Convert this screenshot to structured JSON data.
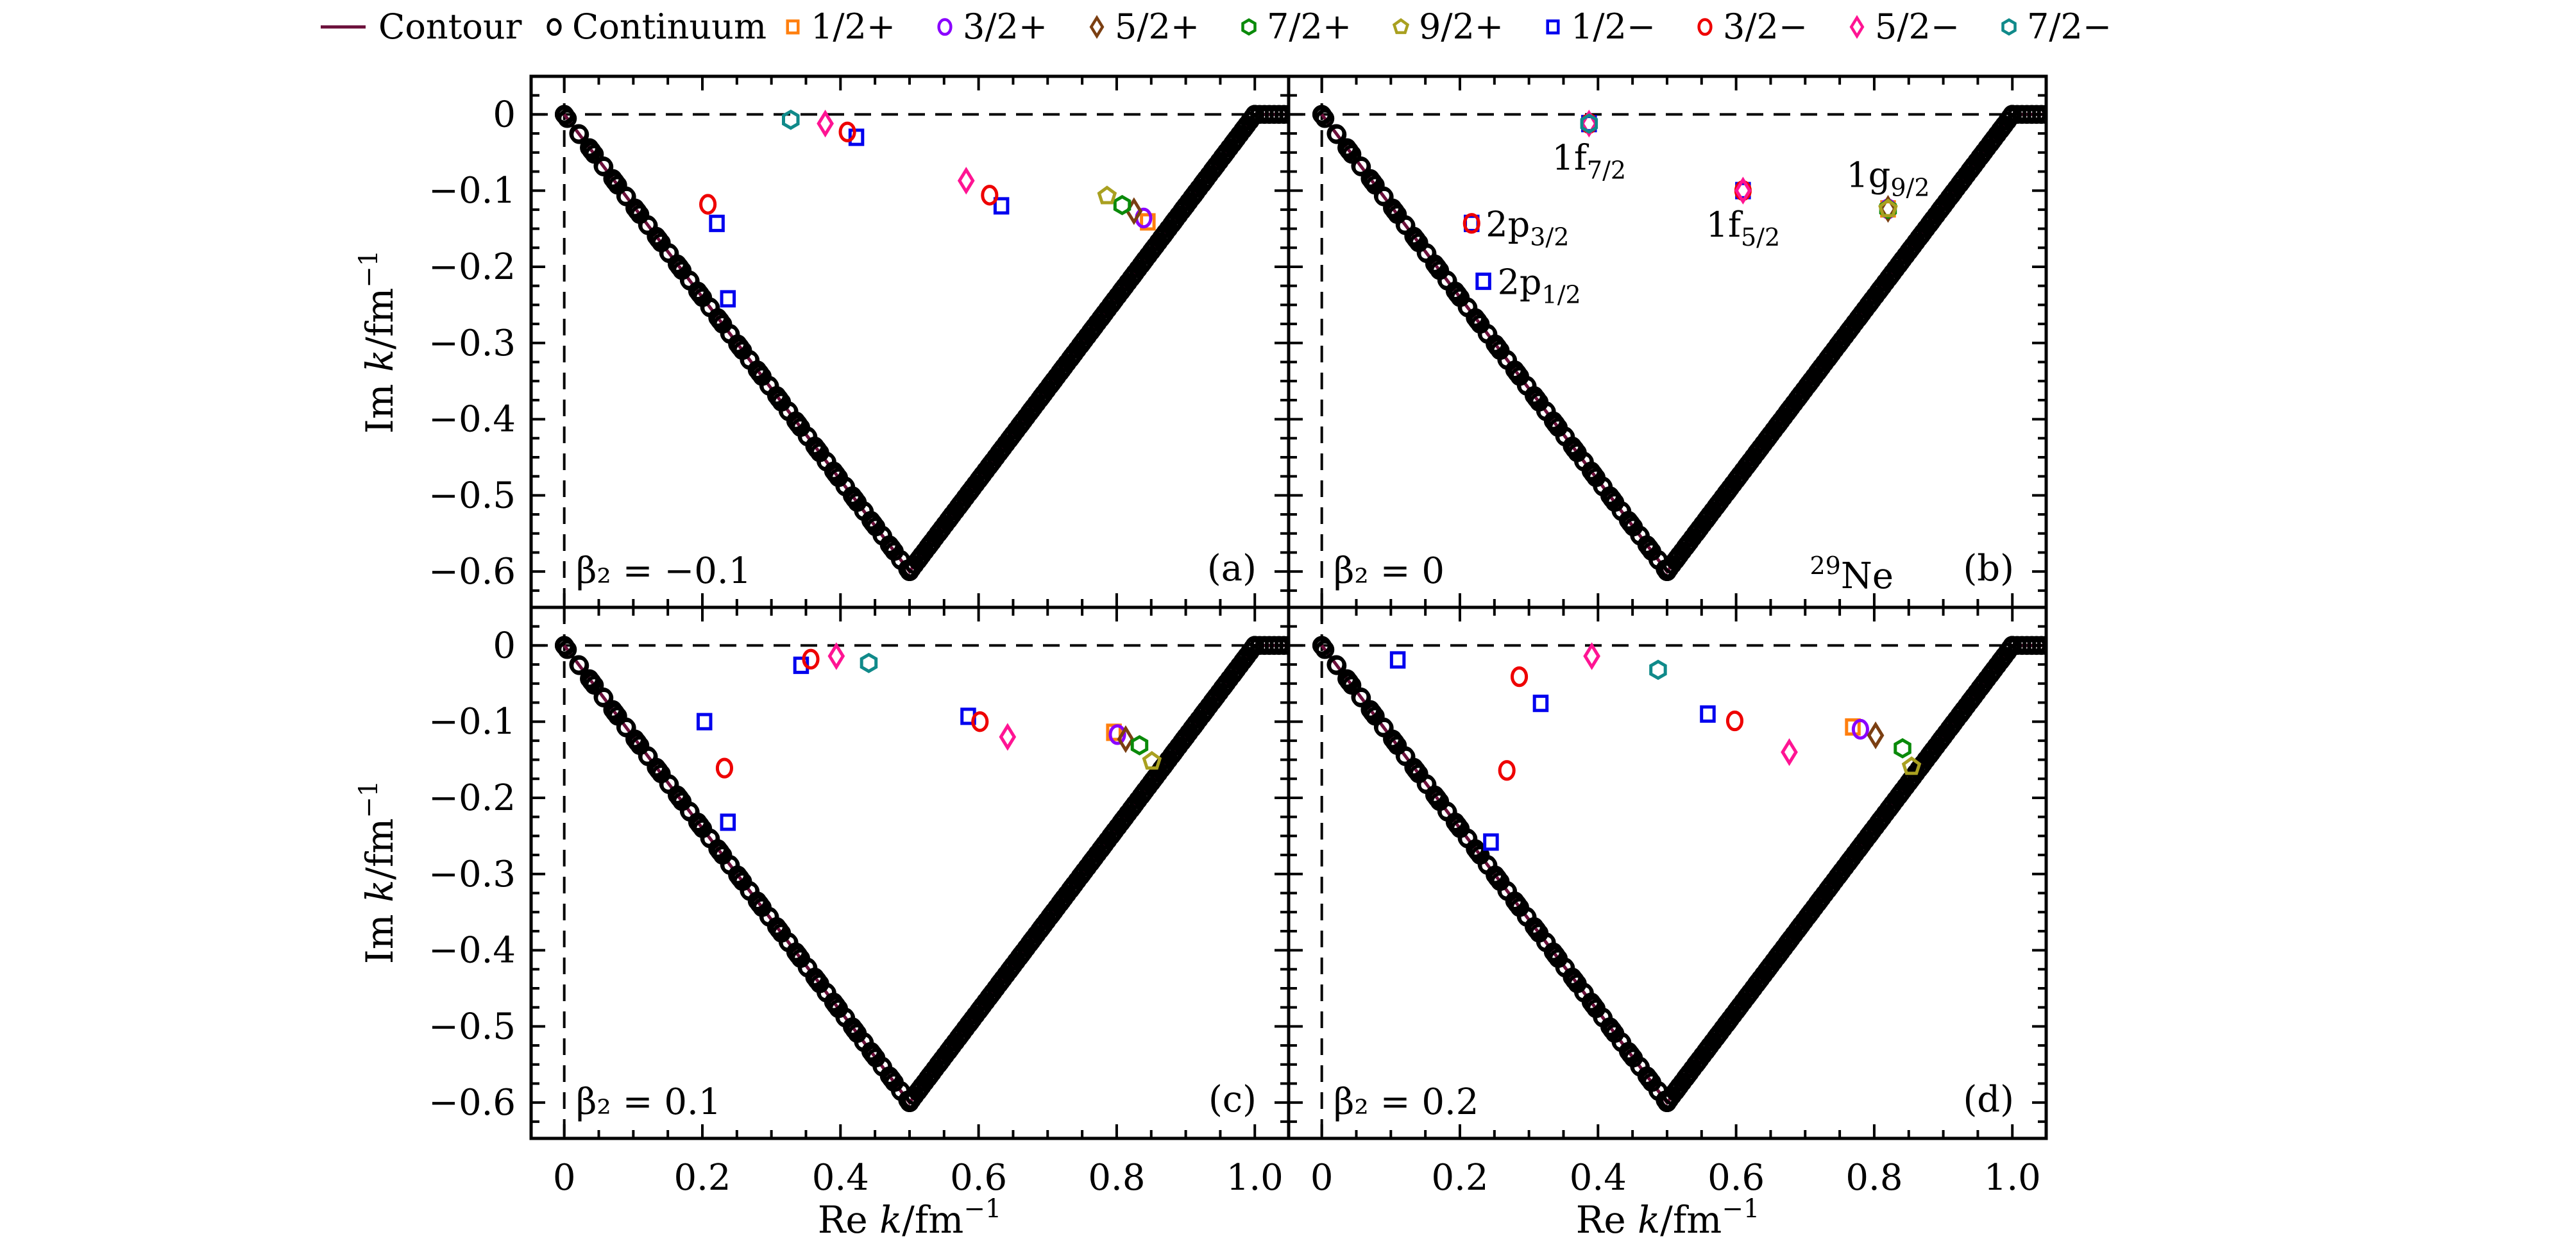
{
  "chart_data": {
    "type": "scatter",
    "layout": "2x2 panels, shared axes",
    "xlabel": "Re k/fm⁻¹",
    "ylabel": "Im k/fm⁻¹",
    "xlabel_parts": {
      "pre": "Re ",
      "var": "k",
      "post": "/fm",
      "sup": "−1"
    },
    "ylabel_parts": {
      "pre": "Im ",
      "var": "k",
      "post": "/fm",
      "sup": "−1"
    },
    "xlim": [
      -0.048,
      1.049
    ],
    "ylim": [
      -0.647,
      0.05
    ],
    "xticks": [
      0,
      0.2,
      0.4,
      0.6,
      0.8,
      1.0
    ],
    "xtick_labels": [
      "0",
      "0.2",
      "0.4",
      "0.6",
      "0.8",
      "1.0"
    ],
    "yticks": [
      0,
      -0.1,
      -0.2,
      -0.3,
      -0.4,
      -0.5,
      -0.6
    ],
    "ytick_labels": [
      "0",
      "−0.1",
      "−0.2",
      "−0.3",
      "−0.4",
      "−0.5",
      "−0.6"
    ],
    "grid": false,
    "reference_lines": {
      "x": 0,
      "y": 0,
      "style": "dashed"
    },
    "legend": {
      "placement": "top, outside, single row",
      "entries": [
        {
          "key": "contour",
          "label": "Contour",
          "marker": "line",
          "color": "#6b0f3a"
        },
        {
          "key": "continuum",
          "label": "Continuum",
          "marker": "circle",
          "color": "#000000"
        },
        {
          "key": "1/2+",
          "label": "1/2+",
          "marker": "square",
          "color": "#ff7f0e"
        },
        {
          "key": "3/2+",
          "label": "3/2+",
          "marker": "circle",
          "color": "#8a00ff"
        },
        {
          "key": "5/2+",
          "label": "5/2+",
          "marker": "diamond",
          "color": "#7b3f12"
        },
        {
          "key": "7/2+",
          "label": "7/2+",
          "marker": "hexagon",
          "color": "#0a8a0a"
        },
        {
          "key": "9/2+",
          "label": "9/2+",
          "marker": "pentagon",
          "color": "#a9a020"
        },
        {
          "key": "1/2-",
          "label": "1/2−",
          "marker": "square",
          "color": "#0000ee"
        },
        {
          "key": "3/2-",
          "label": "3/2−",
          "marker": "circle",
          "color": "#ee0000"
        },
        {
          "key": "5/2-",
          "label": "5/2−",
          "marker": "diamond",
          "color": "#ff1493"
        },
        {
          "key": "7/2-",
          "label": "7/2−",
          "marker": "hexagon",
          "color": "#108a8a"
        }
      ]
    },
    "contour": {
      "points": [
        [
          0,
          0
        ],
        [
          0.5,
          -0.6
        ],
        [
          1.0,
          0
        ],
        [
          1.049,
          0
        ]
      ]
    },
    "continuum": {
      "description": "open black circles densely distributed along the contour (several overlapping copies per partial wave)",
      "points_per_segment": 34,
      "flat_tail_points": 8
    },
    "panels": [
      {
        "id": "a",
        "tag": "(a)",
        "beta2_label": "β₂ = −0.1",
        "beta2": -0.1,
        "series": [
          {
            "key": "1/2+",
            "points": [
              [
                0.845,
                -0.141
              ]
            ]
          },
          {
            "key": "3/2+",
            "points": [
              [
                0.839,
                -0.136
              ]
            ]
          },
          {
            "key": "5/2+",
            "points": [
              [
                0.825,
                -0.127
              ]
            ]
          },
          {
            "key": "7/2+",
            "points": [
              [
                0.808,
                -0.119
              ]
            ]
          },
          {
            "key": "9/2+",
            "points": [
              [
                0.786,
                -0.107
              ]
            ]
          },
          {
            "key": "1/2-",
            "points": [
              [
                0.423,
                -0.03
              ],
              [
                0.221,
                -0.143
              ],
              [
                0.237,
                -0.242
              ],
              [
                0.633,
                -0.12
              ]
            ]
          },
          {
            "key": "3/2-",
            "points": [
              [
                0.41,
                -0.023
              ],
              [
                0.208,
                -0.118
              ],
              [
                0.616,
                -0.106
              ]
            ]
          },
          {
            "key": "5/2-",
            "points": [
              [
                0.378,
                -0.012
              ],
              [
                0.582,
                -0.087
              ]
            ]
          },
          {
            "key": "7/2-",
            "points": [
              [
                0.328,
                -0.007
              ]
            ]
          }
        ],
        "annotations": []
      },
      {
        "id": "b",
        "tag": "(b)",
        "beta2_label": "β₂ = 0",
        "beta2": 0,
        "nucleus": {
          "mass": "29",
          "symbol": "Ne"
        },
        "series": [
          {
            "key": "1/2-",
            "points": [
              [
                0.234,
                -0.219
              ],
              [
                0.217,
                -0.143
              ],
              [
                0.61,
                -0.1
              ],
              [
                0.387,
                -0.012
              ]
            ]
          },
          {
            "key": "3/2-",
            "points": [
              [
                0.217,
                -0.143
              ],
              [
                0.61,
                -0.1
              ],
              [
                0.387,
                -0.012
              ]
            ]
          },
          {
            "key": "5/2-",
            "points": [
              [
                0.61,
                -0.1
              ],
              [
                0.387,
                -0.012
              ]
            ]
          },
          {
            "key": "7/2-",
            "points": [
              [
                0.387,
                -0.012
              ]
            ]
          },
          {
            "key": "1/2+",
            "points": [
              [
                0.82,
                -0.124
              ]
            ]
          },
          {
            "key": "3/2+",
            "points": [
              [
                0.82,
                -0.124
              ]
            ]
          },
          {
            "key": "5/2+",
            "points": [
              [
                0.82,
                -0.124
              ]
            ]
          },
          {
            "key": "7/2+",
            "points": [
              [
                0.82,
                -0.124
              ]
            ]
          },
          {
            "key": "9/2+",
            "points": [
              [
                0.82,
                -0.124
              ]
            ]
          }
        ],
        "annotations": [
          {
            "main": "1f",
            "sub": "7/2",
            "x": 0.387,
            "y": -0.012,
            "pos": "below"
          },
          {
            "main": "1f",
            "sub": "5/2",
            "x": 0.61,
            "y": -0.1,
            "pos": "below"
          },
          {
            "main": "1g",
            "sub": "9/2",
            "x": 0.82,
            "y": -0.124,
            "pos": "above"
          },
          {
            "main": "2p",
            "sub": "3/2",
            "x": 0.217,
            "y": -0.143,
            "pos": "right"
          },
          {
            "main": "2p",
            "sub": "1/2",
            "x": 0.234,
            "y": -0.219,
            "pos": "right"
          }
        ]
      },
      {
        "id": "c",
        "tag": "(c)",
        "beta2_label": "β₂ = 0.1",
        "beta2": 0.1,
        "series": [
          {
            "key": "1/2+",
            "points": [
              [
                0.796,
                -0.114
              ]
            ]
          },
          {
            "key": "3/2+",
            "points": [
              [
                0.801,
                -0.117
              ]
            ]
          },
          {
            "key": "5/2+",
            "points": [
              [
                0.813,
                -0.123
              ]
            ]
          },
          {
            "key": "7/2+",
            "points": [
              [
                0.833,
                -0.131
              ]
            ]
          },
          {
            "key": "9/2+",
            "points": [
              [
                0.851,
                -0.152
              ]
            ]
          },
          {
            "key": "1/2-",
            "points": [
              [
                0.343,
                -0.026
              ],
              [
                0.203,
                -0.1
              ],
              [
                0.237,
                -0.232
              ],
              [
                0.585,
                -0.093
              ]
            ]
          },
          {
            "key": "3/2-",
            "points": [
              [
                0.357,
                -0.018
              ],
              [
                0.232,
                -0.161
              ],
              [
                0.602,
                -0.1
              ]
            ]
          },
          {
            "key": "5/2-",
            "points": [
              [
                0.394,
                -0.014
              ],
              [
                0.642,
                -0.12
              ]
            ]
          },
          {
            "key": "7/2-",
            "points": [
              [
                0.441,
                -0.023
              ]
            ]
          }
        ],
        "annotations": []
      },
      {
        "id": "d",
        "tag": "(d)",
        "beta2_label": "β₂ = 0.2",
        "beta2": 0.2,
        "series": [
          {
            "key": "1/2+",
            "points": [
              [
                0.769,
                -0.107
              ]
            ]
          },
          {
            "key": "3/2+",
            "points": [
              [
                0.78,
                -0.11
              ]
            ]
          },
          {
            "key": "5/2+",
            "points": [
              [
                0.802,
                -0.118
              ]
            ]
          },
          {
            "key": "7/2+",
            "points": [
              [
                0.841,
                -0.135
              ]
            ]
          },
          {
            "key": "9/2+",
            "points": [
              [
                0.854,
                -0.159
              ]
            ]
          },
          {
            "key": "1/2-",
            "points": [
              [
                0.11,
                -0.019
              ],
              [
                0.317,
                -0.076
              ],
              [
                0.245,
                -0.258
              ],
              [
                0.559,
                -0.09
              ]
            ]
          },
          {
            "key": "3/2-",
            "points": [
              [
                0.286,
                -0.041
              ],
              [
                0.268,
                -0.164
              ],
              [
                0.598,
                -0.099
              ]
            ]
          },
          {
            "key": "5/2-",
            "points": [
              [
                0.391,
                -0.014
              ],
              [
                0.677,
                -0.14
              ]
            ]
          },
          {
            "key": "7/2-",
            "points": [
              [
                0.487,
                -0.032
              ]
            ]
          }
        ],
        "annotations": []
      }
    ]
  }
}
